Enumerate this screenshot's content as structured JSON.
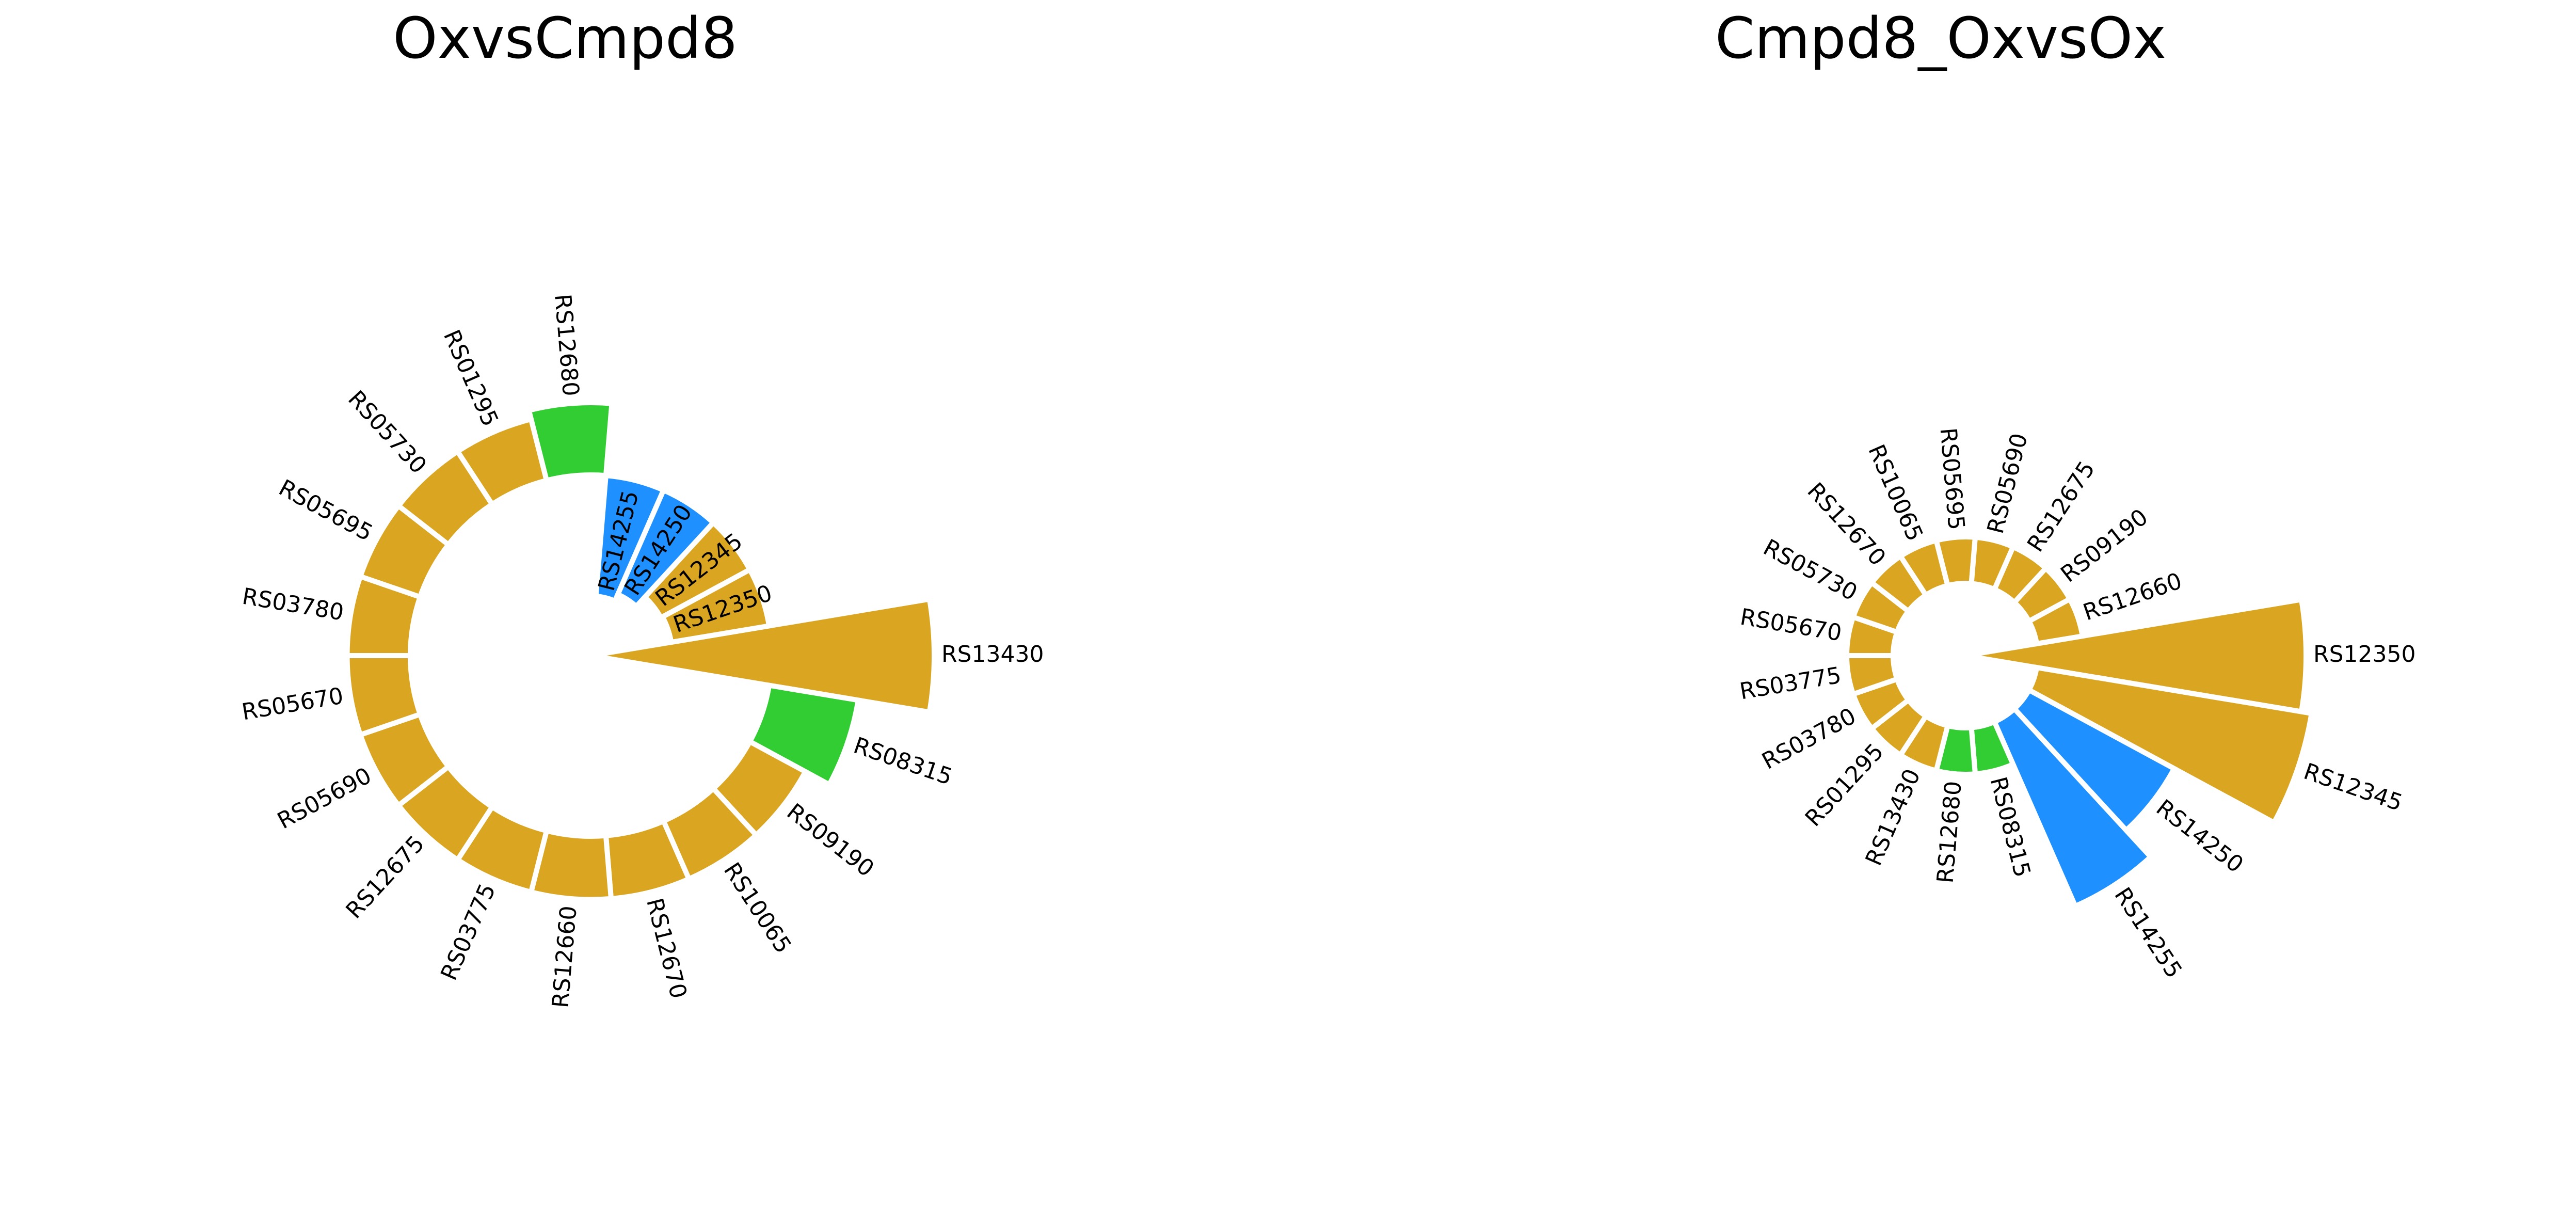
{
  "chart_data": [
    {
      "type": "radial-bar",
      "title": "OxvsCmpd8",
      "inner_radius": 1,
      "bars": [
        {
          "label": "RS13430",
          "value": 1.9,
          "category": "other"
        },
        {
          "label": "RS08315",
          "value": 1.5,
          "category": "up"
        },
        {
          "label": "RS09190",
          "value": 1.35,
          "category": "other"
        },
        {
          "label": "RS10065",
          "value": 1.35,
          "category": "other"
        },
        {
          "label": "RS12670",
          "value": 1.35,
          "category": "other"
        },
        {
          "label": "RS12660",
          "value": 1.35,
          "category": "other"
        },
        {
          "label": "RS03775",
          "value": 1.35,
          "category": "other"
        },
        {
          "label": "RS12675",
          "value": 1.35,
          "category": "other"
        },
        {
          "label": "RS05690",
          "value": 1.35,
          "category": "other"
        },
        {
          "label": "RS05670",
          "value": 1.35,
          "category": "other"
        },
        {
          "label": "RS03780",
          "value": 1.35,
          "category": "other"
        },
        {
          "label": "RS05695",
          "value": 1.35,
          "category": "other"
        },
        {
          "label": "RS05730",
          "value": 1.35,
          "category": "other"
        },
        {
          "label": "RS01295",
          "value": 1.35,
          "category": "other"
        },
        {
          "label": "RS12680",
          "value": 1.4,
          "category": "up"
        },
        {
          "label": "RS14255",
          "value": 0.33,
          "category": "down"
        },
        {
          "label": "RS14250",
          "value": 0.37,
          "category": "down"
        },
        {
          "label": "RS12345",
          "value": 0.44,
          "category": "other"
        },
        {
          "label": "RS12350",
          "value": 0.45,
          "category": "other"
        }
      ]
    },
    {
      "type": "radial-bar",
      "title": "Cmpd8_OxvsOx",
      "inner_radius": 0.7,
      "bars": [
        {
          "label": "RS12350",
          "value": 3.3,
          "category": "other"
        },
        {
          "label": "RS12345",
          "value": 3.4,
          "category": "other"
        },
        {
          "label": "RS14250",
          "value": 2.3,
          "category": "down"
        },
        {
          "label": "RS14255",
          "value": 2.65,
          "category": "down"
        },
        {
          "label": "RS08315",
          "value": 1.15,
          "category": "up"
        },
        {
          "label": "RS12680",
          "value": 1.15,
          "category": "up"
        },
        {
          "label": "RS13430",
          "value": 1.15,
          "category": "other"
        },
        {
          "label": "RS01295",
          "value": 1.15,
          "category": "other"
        },
        {
          "label": "RS03780",
          "value": 1.15,
          "category": "other"
        },
        {
          "label": "RS03775",
          "value": 1.15,
          "category": "other"
        },
        {
          "label": "RS05670",
          "value": 1.15,
          "category": "other"
        },
        {
          "label": "RS05730",
          "value": 1.15,
          "category": "other"
        },
        {
          "label": "RS12670",
          "value": 1.15,
          "category": "other"
        },
        {
          "label": "RS10065",
          "value": 1.15,
          "category": "other"
        },
        {
          "label": "RS05695",
          "value": 1.15,
          "category": "other"
        },
        {
          "label": "RS05690",
          "value": 1.15,
          "category": "other"
        },
        {
          "label": "RS12675",
          "value": 1.15,
          "category": "other"
        },
        {
          "label": "RS09190",
          "value": 1.15,
          "category": "other"
        },
        {
          "label": "RS12660",
          "value": 1.15,
          "category": "other"
        }
      ]
    }
  ],
  "colors": {
    "other": "#DAA520",
    "up": "#32CD32",
    "down": "#1E90FF",
    "edge": "#ffffff"
  }
}
